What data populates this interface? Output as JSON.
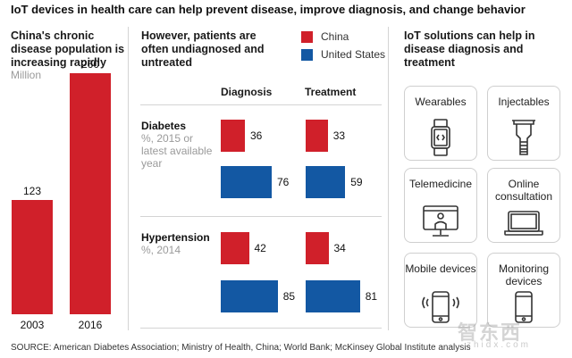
{
  "title": "IoT devices in health care can help prevent disease, improve diagnosis, and change behavior",
  "left_panel": {
    "heading": "China's chronic disease population is increasing rapidly",
    "unit": "Million"
  },
  "middle_panel": {
    "heading": "However, patients are often undiagnosed and untreated",
    "columns": [
      "Diagnosis",
      "Treatment"
    ],
    "rows": [
      {
        "label": "Diabetes",
        "sub": "%, 2015 or latest available year"
      },
      {
        "label": "Hypertension",
        "sub": "%, 2014"
      }
    ]
  },
  "legend": [
    {
      "name": "China",
      "color": "#d0202a"
    },
    {
      "name": "United States",
      "color": "#1358a3"
    }
  ],
  "right_panel": {
    "heading": "IoT solutions can help in disease diagnosis and treatment",
    "cards": [
      {
        "label": "Wearables",
        "icon": "smartwatch-icon"
      },
      {
        "label": "Injectables",
        "icon": "injectable-icon"
      },
      {
        "label": "Telemedicine",
        "icon": "monitor-person-icon"
      },
      {
        "label": "Online consultation",
        "icon": "laptop-icon"
      },
      {
        "label": "Mobile devices",
        "icon": "vibrating-phone-icon"
      },
      {
        "label": "Monitoring devices",
        "icon": "phone-icon"
      }
    ]
  },
  "source": "SOURCE:  American Diabetes Association; Ministry of Health, China; World Bank; McKinsey Global Institute analysis",
  "watermark": {
    "main": "智东西",
    "sub": "zhidx.com"
  },
  "chart_data": [
    {
      "type": "bar",
      "title": "China's chronic disease population is increasing rapidly",
      "ylabel": "Million",
      "categories": [
        "2003",
        "2016"
      ],
      "values": [
        123,
        260
      ],
      "color": "#d0202a",
      "ylim": [
        0,
        260
      ],
      "grid": false
    },
    {
      "type": "bar",
      "orientation": "horizontal",
      "title": "However, patients are often undiagnosed and untreated",
      "unit": "%",
      "groups": [
        "Diagnosis",
        "Treatment"
      ],
      "categories": [
        "Diabetes",
        "Hypertension"
      ],
      "series": [
        {
          "name": "China",
          "color": "#d0202a",
          "values": {
            "Diabetes": [
              36,
              33
            ],
            "Hypertension": [
              42,
              34
            ]
          }
        },
        {
          "name": "United States",
          "color": "#1358a3",
          "values": {
            "Diabetes": [
              76,
              59
            ],
            "Hypertension": [
              85,
              81
            ]
          }
        }
      ],
      "xlim": [
        0,
        100
      ],
      "legend": "top-right",
      "grid": false
    }
  ]
}
